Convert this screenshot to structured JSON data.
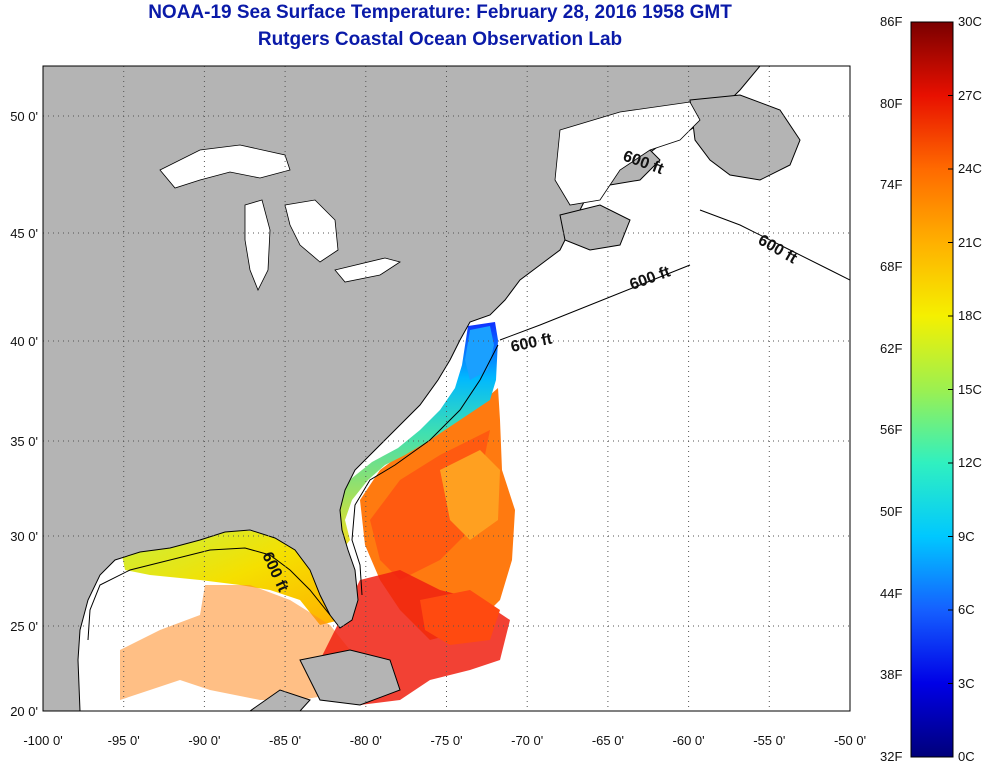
{
  "header": {
    "title": "NOAA-19 Sea Surface Temperature:  February 28, 2016 1958 GMT",
    "subtitle": "Rutgers Coastal Ocean Observation Lab"
  },
  "map": {
    "lat_labels": [
      "50 0'",
      "45 0'",
      "40 0'",
      "35 0'",
      "30 0'",
      "25 0'",
      "20 0'"
    ],
    "lon_labels": [
      "-100 0'",
      "-95 0'",
      "-90 0'",
      "-85 0'",
      "-80 0'",
      "-75 0'",
      "-70 0'",
      "-65 0'",
      "-60 0'",
      "-55 0'",
      "-50 0'"
    ],
    "contour_labels": [
      "600 ft",
      "600 ft",
      "600 ft",
      "600 ft",
      "600 ft"
    ],
    "colors": {
      "land": "#b4b4b4",
      "ocean_no_data": "#ffffff",
      "title": "#0a1aa8"
    }
  },
  "colorbar": {
    "fahrenheit": [
      "86F",
      "80F",
      "74F",
      "68F",
      "62F",
      "56F",
      "50F",
      "44F",
      "38F",
      "32F"
    ],
    "celsius": [
      "30C",
      "27C",
      "24C",
      "21C",
      "18C",
      "15C",
      "12C",
      "9C",
      "6C",
      "3C",
      "0C"
    ],
    "gradient": [
      "#00007a",
      "#0000e6",
      "#1560ff",
      "#00c8ff",
      "#30f0c0",
      "#9cf050",
      "#f5f000",
      "#ffb000",
      "#ff6a00",
      "#e81000",
      "#7a0000"
    ]
  }
}
